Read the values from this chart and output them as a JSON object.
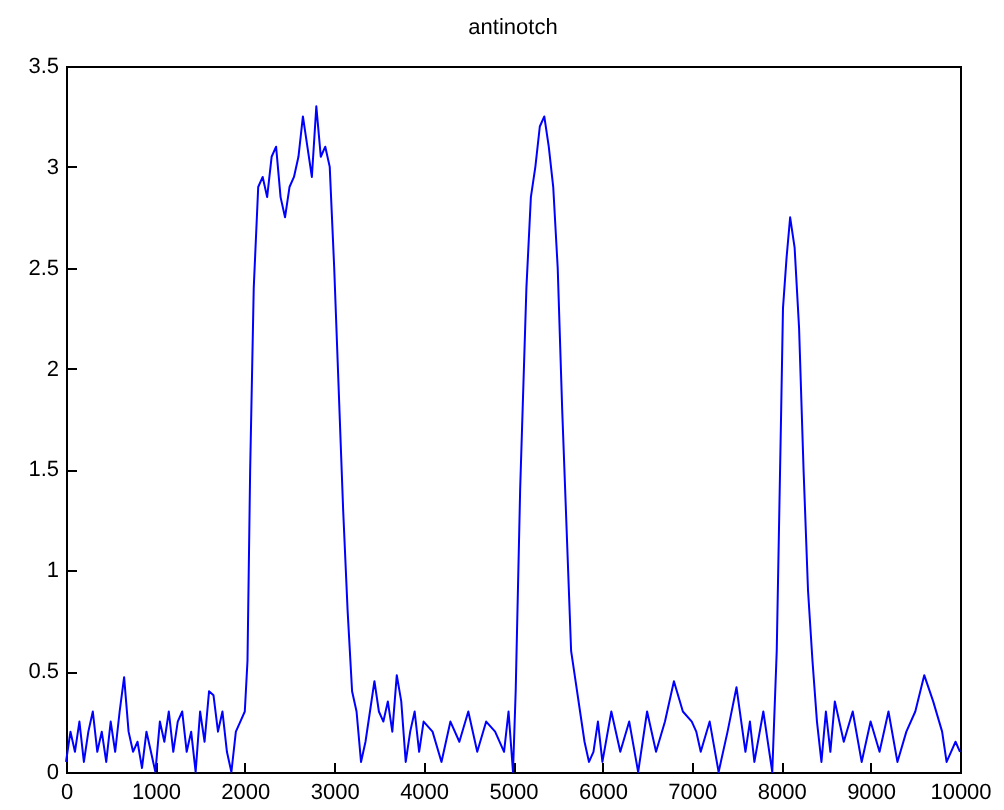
{
  "chart_data": {
    "type": "line",
    "title": "antinotch",
    "x": [
      0,
      50,
      100,
      150,
      200,
      250,
      300,
      350,
      400,
      450,
      500,
      550,
      600,
      650,
      700,
      750,
      800,
      850,
      900,
      950,
      1000,
      1050,
      1100,
      1150,
      1200,
      1250,
      1300,
      1350,
      1400,
      1450,
      1500,
      1550,
      1600,
      1650,
      1700,
      1750,
      1800,
      1850,
      1900,
      1950,
      2000,
      2030,
      2060,
      2100,
      2150,
      2200,
      2250,
      2300,
      2350,
      2400,
      2450,
      2500,
      2550,
      2600,
      2650,
      2700,
      2750,
      2800,
      2850,
      2900,
      2950,
      3000,
      3050,
      3100,
      3150,
      3200,
      3250,
      3300,
      3350,
      3400,
      3450,
      3500,
      3550,
      3600,
      3650,
      3700,
      3750,
      3800,
      3850,
      3900,
      3950,
      4000,
      4100,
      4200,
      4300,
      4400,
      4500,
      4600,
      4700,
      4800,
      4900,
      4950,
      5000,
      5030,
      5080,
      5150,
      5200,
      5250,
      5300,
      5350,
      5400,
      5450,
      5500,
      5550,
      5600,
      5650,
      5700,
      5750,
      5800,
      5850,
      5900,
      5950,
      6000,
      6100,
      6200,
      6300,
      6400,
      6500,
      6600,
      6700,
      6800,
      6900,
      7000,
      7050,
      7100,
      7200,
      7300,
      7400,
      7500,
      7600,
      7650,
      7700,
      7800,
      7900,
      7950,
      8000,
      8020,
      8060,
      8100,
      8150,
      8200,
      8250,
      8300,
      8350,
      8400,
      8450,
      8500,
      8550,
      8600,
      8700,
      8800,
      8900,
      9000,
      9100,
      9200,
      9300,
      9400,
      9500,
      9600,
      9700,
      9800,
      9850,
      9900,
      9950,
      10000
    ],
    "series": [
      {
        "color": "#0000ff",
        "values": [
          0.05,
          0.2,
          0.1,
          0.25,
          0.05,
          0.2,
          0.3,
          0.1,
          0.2,
          0.05,
          0.25,
          0.1,
          0.3,
          0.47,
          0.2,
          0.1,
          0.15,
          0.02,
          0.2,
          0.1,
          0.0,
          0.25,
          0.15,
          0.3,
          0.1,
          0.25,
          0.3,
          0.1,
          0.2,
          0.0,
          0.3,
          0.15,
          0.4,
          0.38,
          0.2,
          0.3,
          0.1,
          0.0,
          0.2,
          0.25,
          0.3,
          0.55,
          1.5,
          2.4,
          2.9,
          2.95,
          2.85,
          3.05,
          3.1,
          2.85,
          2.75,
          2.9,
          2.95,
          3.05,
          3.25,
          3.1,
          2.95,
          3.3,
          3.05,
          3.1,
          3.0,
          2.5,
          1.9,
          1.3,
          0.8,
          0.4,
          0.3,
          0.05,
          0.15,
          0.3,
          0.45,
          0.3,
          0.25,
          0.35,
          0.2,
          0.48,
          0.35,
          0.05,
          0.2,
          0.3,
          0.1,
          0.25,
          0.2,
          0.05,
          0.25,
          0.15,
          0.3,
          0.1,
          0.25,
          0.2,
          0.1,
          0.3,
          0.0,
          0.4,
          1.4,
          2.4,
          2.85,
          3.0,
          3.2,
          3.25,
          3.1,
          2.9,
          2.5,
          1.8,
          1.2,
          0.6,
          0.45,
          0.3,
          0.15,
          0.05,
          0.1,
          0.25,
          0.05,
          0.3,
          0.1,
          0.25,
          0.0,
          0.3,
          0.1,
          0.25,
          0.45,
          0.3,
          0.25,
          0.2,
          0.1,
          0.25,
          0.0,
          0.2,
          0.42,
          0.1,
          0.25,
          0.05,
          0.3,
          0.0,
          0.6,
          1.8,
          2.3,
          2.55,
          2.75,
          2.6,
          2.2,
          1.5,
          0.9,
          0.55,
          0.25,
          0.05,
          0.3,
          0.1,
          0.35,
          0.15,
          0.3,
          0.05,
          0.25,
          0.1,
          0.3,
          0.05,
          0.2,
          0.3,
          0.48,
          0.35,
          0.2,
          0.05,
          0.1,
          0.15,
          0.1
        ]
      }
    ],
    "xlim": [
      0,
      10000
    ],
    "xticks": [
      0,
      1000,
      2000,
      3000,
      4000,
      5000,
      6000,
      7000,
      8000,
      9000,
      10000
    ],
    "ylim": [
      0,
      3.5
    ],
    "yticks": [
      0,
      0.5,
      1,
      1.5,
      2,
      2.5,
      3,
      3.5
    ],
    "grid": false,
    "legend": false,
    "line_style": "solid",
    "marker": "none"
  }
}
